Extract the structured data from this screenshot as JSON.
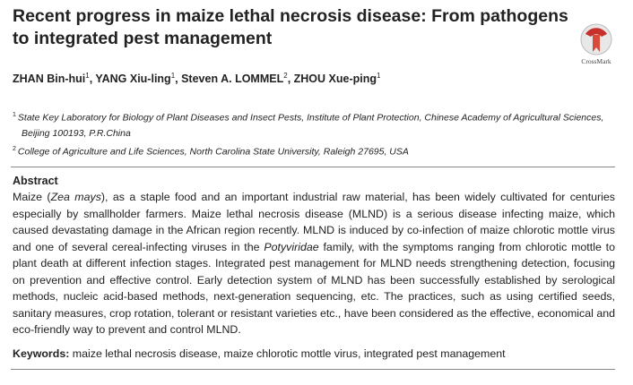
{
  "header": {
    "title": "Recent progress in maize lethal necrosis disease: From pathogens to integrated pest management",
    "crossmark": "CrossMark"
  },
  "authors": [
    {
      "name": "ZHAN Bin-hui",
      "affiliation": "1"
    },
    {
      "name": "YANG Xiu-ling",
      "affiliation": "1"
    },
    {
      "name": "Steven A. LOMMEL",
      "affiliation": "2"
    },
    {
      "name": "ZHOU Xue-ping",
      "affiliation": "1"
    }
  ],
  "author_separator": ", ",
  "affiliations": [
    {
      "mark": "1",
      "text": "State Key Laboratory for Biology of Plant Diseases and Insect Pests, Institute of Plant Protection, Chinese Academy of Agricultural Sciences, Beijing 100193, P.R.China"
    },
    {
      "mark": "2",
      "text": "College of Agriculture and Life Sciences, North Carolina State University, Raleigh 27695, USA"
    }
  ],
  "abstract": {
    "heading": "Abstract",
    "runs": [
      {
        "text": "Maize (",
        "style": "normal"
      },
      {
        "text": "Zea mays",
        "style": "italic"
      },
      {
        "text": "), as a staple food and an important industrial raw material, has been widely cultivated for centuries especially by smallholder farmers.  Maize lethal necrosis disease (MLND) is a serious disease infecting maize, which caused devastating damage in the African region recently.  MLND is induced by co-infection of maize chlorotic mottle virus and one of several cereal-infecting viruses in the ",
        "style": "normal"
      },
      {
        "text": "Potyviridae",
        "style": "italic"
      },
      {
        "text": " family, with the symptoms ranging from chlorotic mottle to plant death at different infection stages.  Integrated pest management for MLND needs strengthening detection, focusing on prevention and effective control.  Early detection system of MLND has been successfully established by serological methods, nucleic acid-based methods, next-generation sequencing, etc.  The practices, such as using certified seeds, sanitary measures, crop rotation, tolerant or resistant varieties etc., have been considered as the effective, economical and eco-friendly way to prevent and control MLND.",
        "style": "normal"
      }
    ]
  },
  "keywords": {
    "label": "Keywords:",
    "text": " maize lethal necrosis disease, maize chlorotic mottle virus, integrated pest management"
  }
}
